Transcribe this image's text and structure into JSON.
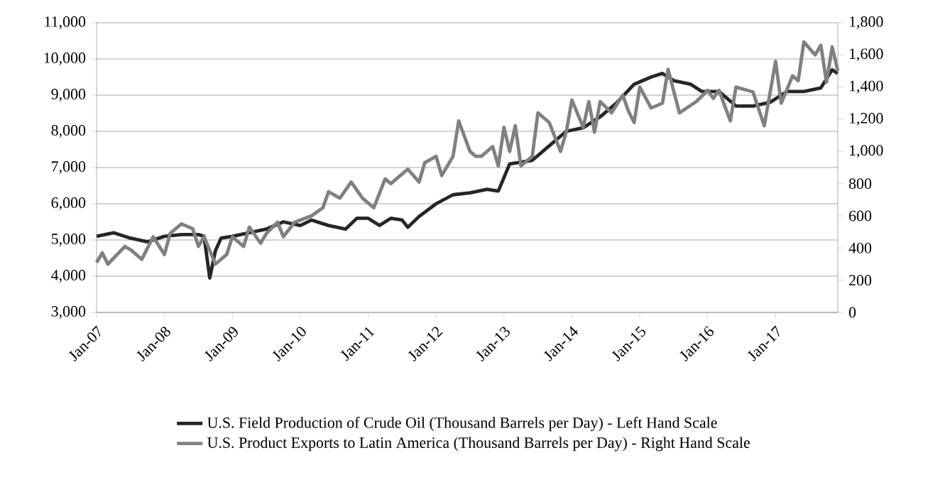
{
  "chart_data": {
    "type": "line",
    "xlim": [
      "2007-01",
      "2017-12"
    ],
    "xticks": [
      {
        "value": "2007-01",
        "label": "Jan-07"
      },
      {
        "value": "2008-01",
        "label": "Jan-08"
      },
      {
        "value": "2009-01",
        "label": "Jan-09"
      },
      {
        "value": "2010-01",
        "label": "Jan-10"
      },
      {
        "value": "2011-01",
        "label": "Jan-11"
      },
      {
        "value": "2012-01",
        "label": "Jan-12"
      },
      {
        "value": "2013-01",
        "label": "Jan-13"
      },
      {
        "value": "2014-01",
        "label": "Jan-14"
      },
      {
        "value": "2015-01",
        "label": "Jan-15"
      },
      {
        "value": "2016-01",
        "label": "Jan-16"
      },
      {
        "value": "2017-01",
        "label": "Jan-17"
      }
    ],
    "ylim": [
      3000,
      11000
    ],
    "yticks": [
      {
        "value": 3000,
        "label": "3,000"
      },
      {
        "value": 4000,
        "label": "4,000"
      },
      {
        "value": 5000,
        "label": "5,000"
      },
      {
        "value": 6000,
        "label": "6,000"
      },
      {
        "value": 7000,
        "label": "7,000"
      },
      {
        "value": 8000,
        "label": "8,000"
      },
      {
        "value": 9000,
        "label": "9,000"
      },
      {
        "value": 10000,
        "label": "10,000"
      },
      {
        "value": 11000,
        "label": "11,000"
      }
    ],
    "y2lim": [
      0,
      1800
    ],
    "y2ticks": [
      0,
      200,
      400,
      600,
      800,
      {
        "value": 1000,
        "label": "1,000"
      },
      {
        "value": 1200,
        "label": "1,200"
      },
      {
        "value": 1400,
        "label": "1,400"
      },
      {
        "value": 1600,
        "label": "1,600"
      },
      {
        "value": 1800,
        "label": "1,800"
      }
    ],
    "grid": "y",
    "legend": "bottom",
    "marker": "none",
    "line_style": "solid",
    "series": [
      {
        "name": "U.S. Field Production of Crude Oil (Thousand Barrels per Day) - Left Hand Scale",
        "color": "#262626",
        "x": [
          "2007-01",
          "2007-04",
          "2007-07",
          "2007-10",
          "2008-01",
          "2008-04",
          "2008-07",
          "2008-08",
          "2008-09",
          "2008-10",
          "2008-11",
          "2009-01",
          "2009-04",
          "2009-07",
          "2009-10",
          "2010-01",
          "2010-03",
          "2010-06",
          "2010-09",
          "2010-11",
          "2011-01",
          "2011-03",
          "2011-05",
          "2011-07",
          "2011-08",
          "2011-10",
          "2012-01",
          "2012-04",
          "2012-07",
          "2012-10",
          "2012-12",
          "2013-02",
          "2013-06",
          "2013-09",
          "2013-12",
          "2014-03",
          "2014-06",
          "2014-09",
          "2014-12",
          "2015-03",
          "2015-05",
          "2015-07",
          "2015-10",
          "2015-12",
          "2016-03",
          "2016-06",
          "2016-09",
          "2016-12",
          "2017-03",
          "2017-06",
          "2017-09",
          "2017-11",
          "2017-12"
        ],
        "values": [
          5100,
          5200,
          5050,
          4950,
          5100,
          5150,
          5150,
          5100,
          3950,
          4700,
          5050,
          5100,
          5200,
          5300,
          5500,
          5400,
          5550,
          5400,
          5300,
          5600,
          5600,
          5400,
          5600,
          5550,
          5350,
          5650,
          6000,
          6250,
          6300,
          6400,
          6350,
          7100,
          7200,
          7600,
          8000,
          8100,
          8400,
          8800,
          9300,
          9500,
          9600,
          9400,
          9300,
          9100,
          9100,
          8700,
          8700,
          8800,
          9100,
          9100,
          9200,
          9700,
          9600
        ]
      },
      {
        "name": "U.S. Product Exports to Latin America (Thousand Barrels per Day) - Right Hand Scale",
        "color": "#808080",
        "axis": "y2",
        "x": [
          "2007-01",
          "2007-02",
          "2007-03",
          "2007-06",
          "2007-07",
          "2007-09",
          "2007-11",
          "2008-01",
          "2008-02",
          "2008-04",
          "2008-06",
          "2008-07",
          "2008-08",
          "2008-10",
          "2008-12",
          "2009-01",
          "2009-03",
          "2009-04",
          "2009-06",
          "2009-07",
          "2009-09",
          "2009-10",
          "2009-12",
          "2010-03",
          "2010-05",
          "2010-06",
          "2010-08",
          "2010-10",
          "2010-12",
          "2011-02",
          "2011-04",
          "2011-05",
          "2011-08",
          "2011-10",
          "2011-11",
          "2012-01",
          "2012-02",
          "2012-04",
          "2012-05",
          "2012-07",
          "2012-08",
          "2012-09",
          "2012-11",
          "2012-12",
          "2013-01",
          "2013-02",
          "2013-03",
          "2013-04",
          "2013-06",
          "2013-07",
          "2013-09",
          "2013-11",
          "2013-12",
          "2014-01",
          "2014-03",
          "2014-04",
          "2014-05",
          "2014-06",
          "2014-08",
          "2014-10",
          "2014-11",
          "2014-12",
          "2015-01",
          "2015-03",
          "2015-05",
          "2015-06",
          "2015-08",
          "2015-11",
          "2016-01",
          "2016-02",
          "2016-03",
          "2016-05",
          "2016-06",
          "2016-09",
          "2016-11",
          "2017-01",
          "2017-02",
          "2017-04",
          "2017-05",
          "2017-06",
          "2017-08",
          "2017-09",
          "2017-10",
          "2017-11",
          "2017-12"
        ],
        "values": [
          310,
          370,
          300,
          410,
          390,
          330,
          470,
          360,
          490,
          550,
          520,
          410,
          470,
          300,
          360,
          470,
          410,
          530,
          430,
          490,
          560,
          470,
          560,
          600,
          650,
          750,
          710,
          810,
          710,
          650,
          830,
          800,
          890,
          810,
          930,
          970,
          850,
          970,
          1190,
          1000,
          970,
          970,
          1030,
          910,
          1150,
          1000,
          1160,
          910,
          970,
          1240,
          1180,
          1000,
          1120,
          1320,
          1150,
          1310,
          1120,
          1310,
          1240,
          1350,
          1250,
          1180,
          1400,
          1270,
          1300,
          1510,
          1240,
          1310,
          1380,
          1330,
          1380,
          1190,
          1400,
          1370,
          1160,
          1560,
          1300,
          1470,
          1440,
          1680,
          1600,
          1660,
          1430,
          1650,
          1500
        ]
      }
    ]
  }
}
